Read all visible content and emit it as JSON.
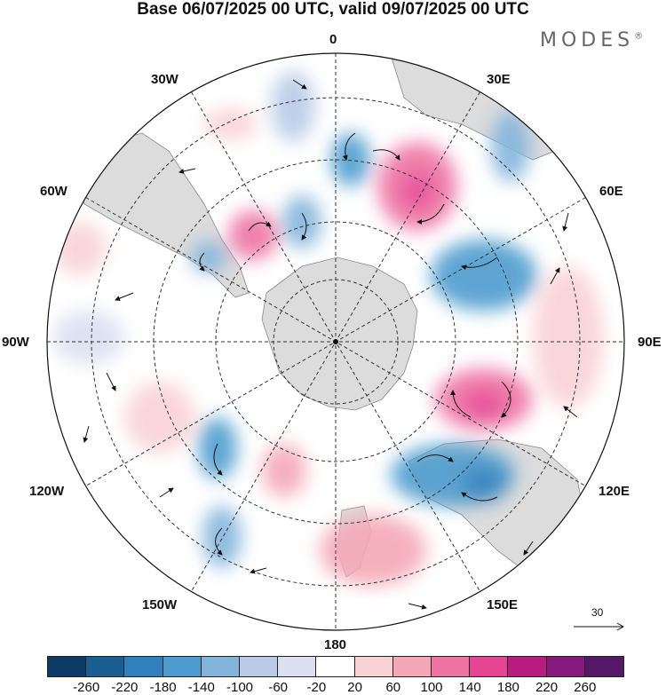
{
  "title": "Base 06/07/2025 00 UTC, valid 09/07/2025 00 UTC",
  "brand": {
    "name": "MODES",
    "mark": "®"
  },
  "map": {
    "projection": "south-polar-stereographic",
    "longitude_labels": {
      "top": "0",
      "top_right": "30E",
      "right_upper": "60E",
      "right": "90E",
      "right_lower": "120E",
      "bottom_right": "150E",
      "bottom": "180",
      "bottom_left": "150W",
      "left_lower": "120W",
      "left": "90W",
      "left_upper": "60W",
      "top_left": "30W"
    },
    "reference_vector": "30",
    "field_colors": {
      "land": "#dcdcdc",
      "graticule": "#333333"
    }
  },
  "colorbar": {
    "colors": [
      "#0d3b66",
      "#1b5e91",
      "#2f80bd",
      "#4e9ccf",
      "#83b4dc",
      "#b9cbe7",
      "#dcdff0",
      "#ffffff",
      "#f9d2d6",
      "#f4a8b6",
      "#ee74a2",
      "#e64594",
      "#b91c7f",
      "#86197b",
      "#561766"
    ],
    "ticks": [
      "-260",
      "-220",
      "-180",
      "-140",
      "-100",
      "-60",
      "-20",
      "20",
      "60",
      "100",
      "140",
      "180",
      "220",
      "260"
    ]
  }
}
